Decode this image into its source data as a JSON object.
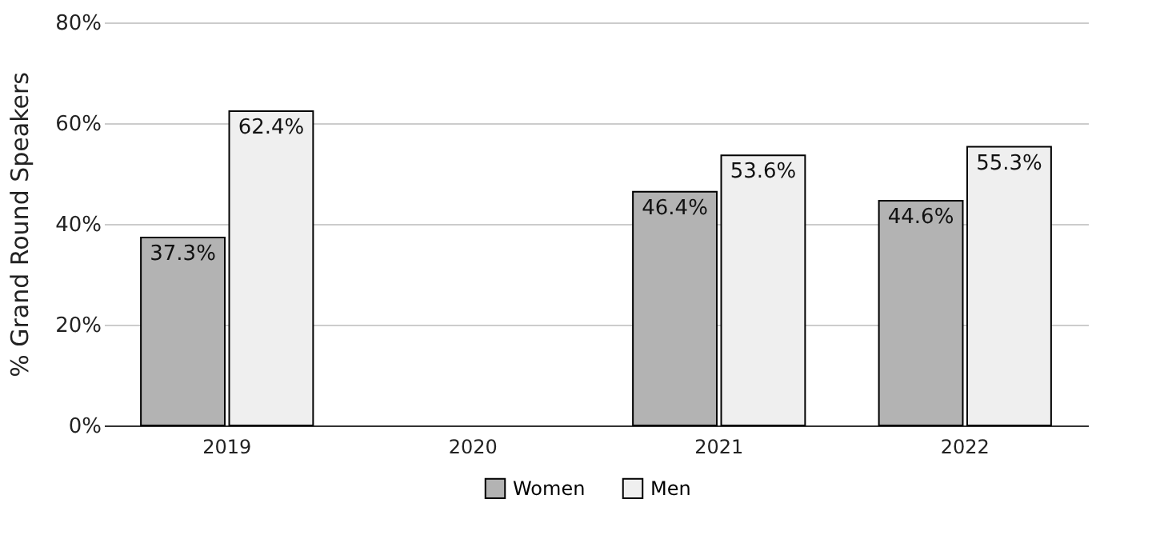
{
  "chart_data": {
    "type": "bar",
    "ylabel": "% Grand Round Speakers",
    "categories": [
      "2019",
      "2020",
      "2021",
      "2022"
    ],
    "series": [
      {
        "name": "Women",
        "color": "#b3b3b3",
        "values": [
          37.3,
          null,
          46.4,
          44.6
        ],
        "value_labels": [
          "37.3%",
          null,
          "46.4%",
          "44.6%"
        ]
      },
      {
        "name": "Men",
        "color": "#efefef",
        "values": [
          62.4,
          null,
          53.6,
          55.3
        ],
        "value_labels": [
          "62.4%",
          null,
          "53.6%",
          "55.3%"
        ]
      }
    ],
    "ylim": [
      0,
      80
    ],
    "yticks": [
      {
        "value": 0,
        "label": "0%"
      },
      {
        "value": 20,
        "label": "20%"
      },
      {
        "value": 40,
        "label": "40%"
      },
      {
        "value": 60,
        "label": "60%"
      },
      {
        "value": 80,
        "label": "80%"
      }
    ],
    "grid": "y",
    "legend": "bottom"
  }
}
